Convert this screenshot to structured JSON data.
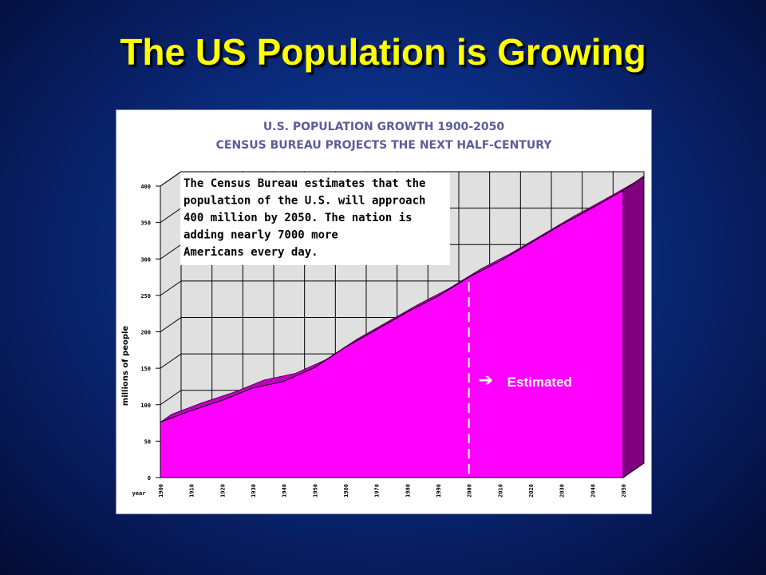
{
  "slide": {
    "title": "The US Population is Growing",
    "background": "#0a2a7a",
    "title_color": "#ffff00"
  },
  "chart_data": {
    "type": "area",
    "title": "U.S. POPULATION GROWTH 1900-2050",
    "subtitle": "CENSUS BUREAU PROJECTS THE NEXT HALF-CENTURY",
    "ylabel": "millions of people",
    "xlabel": "year",
    "ylim": [
      0,
      400
    ],
    "yticks": [
      "0",
      "50",
      "100",
      "150",
      "200",
      "250",
      "300",
      "350",
      "400"
    ],
    "xticks": [
      "1900",
      "1910",
      "1920",
      "1930",
      "1940",
      "1950",
      "1960",
      "1970",
      "1980",
      "1990",
      "2000",
      "2010",
      "2020",
      "2030",
      "2040",
      "2050"
    ],
    "x": [
      1900,
      1910,
      1920,
      1930,
      1940,
      1950,
      1960,
      1970,
      1980,
      1990,
      2000,
      2010,
      2020,
      2030,
      2040,
      2050
    ],
    "series": [
      {
        "values": [
          76,
          92,
          106,
          123,
          132,
          151,
          179,
          203,
          227,
          249,
          275,
          297,
          322,
          347,
          370,
          394
        ]
      }
    ],
    "estimate_start": 2000,
    "estimate_label": "Estimated",
    "annotation": [
      "The Census Bureau estimates that the",
      "population of the U.S. will approach",
      "400 million by 2050. The nation is",
      "adding nearly 7000 more",
      "Americans every day."
    ],
    "colors": {
      "fill": "#ff00ff",
      "side": "#800080",
      "grid_back": "#e0e0e0",
      "title": "#5c5c9a"
    },
    "grid": true,
    "legend": "none"
  }
}
